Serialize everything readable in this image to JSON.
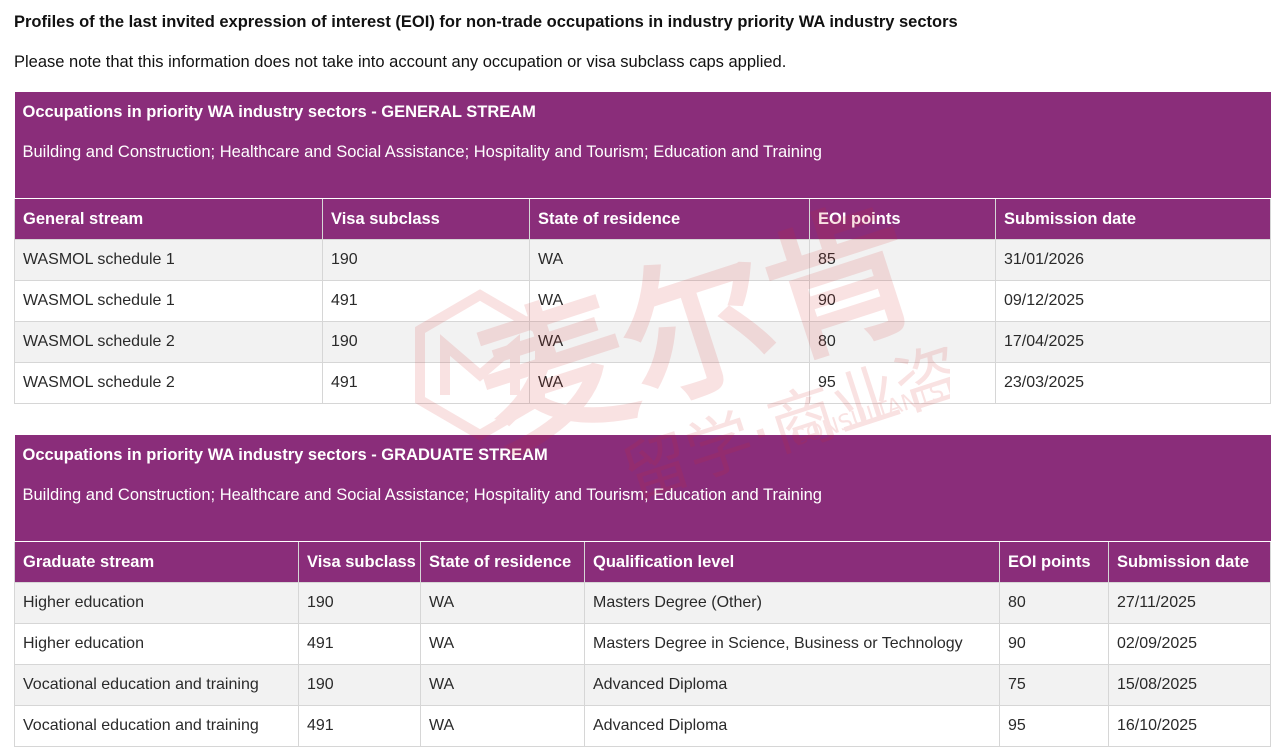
{
  "title": "Profiles of the last invited expression of interest (EOI) for non-trade occupations in industry priority WA industry sectors",
  "note": "Please note that this information does not take into account any occupation or visa subclass caps applied.",
  "tables": [
    {
      "banner_title": "Occupations in priority WA industry sectors - GENERAL STREAM",
      "banner_sub": "Building and Construction; Healthcare and Social Assistance; Hospitality and Tourism; Education and Training",
      "headers": [
        "General stream",
        "Visa subclass",
        "State of residence",
        "EOI points",
        "Submission date"
      ],
      "rows": [
        [
          "WASMOL schedule 1",
          "190",
          "WA",
          "85",
          "31/01/2026"
        ],
        [
          "WASMOL schedule 1",
          "491",
          "WA",
          "90",
          "09/12/2025"
        ],
        [
          "WASMOL schedule 2",
          "190",
          "WA",
          "80",
          "17/04/2025"
        ],
        [
          "WASMOL schedule 2",
          "491",
          "WA",
          "95",
          "23/03/2025"
        ]
      ]
    },
    {
      "banner_title": "Occupations in priority WA industry sectors - GRADUATE STREAM",
      "banner_sub": "Building and Construction; Healthcare and Social Assistance; Hospitality and Tourism; Education and Training",
      "headers": [
        "Graduate stream",
        "Visa subclass",
        "State of residence",
        "Qualification level",
        "EOI points",
        "Submission date"
      ],
      "rows": [
        [
          "Higher education",
          "190",
          "WA",
          "Masters Degree (Other)",
          "80",
          "27/11/2025"
        ],
        [
          "Higher education",
          "491",
          "WA",
          "Masters Degree in Science, Business or Technology",
          "90",
          "02/09/2025"
        ],
        [
          "Vocational education and training",
          "190",
          "WA",
          "Advanced Diploma",
          "75",
          "15/08/2025"
        ],
        [
          "Vocational education and training",
          "491",
          "WA",
          "Advanced Diploma",
          "95",
          "16/10/2025"
        ]
      ]
    }
  ],
  "watermark": {
    "main": "麦尔肯",
    "sub": "留学·商业咨询",
    "en": "CONSULTANTS",
    "color": "#d42a2a"
  }
}
